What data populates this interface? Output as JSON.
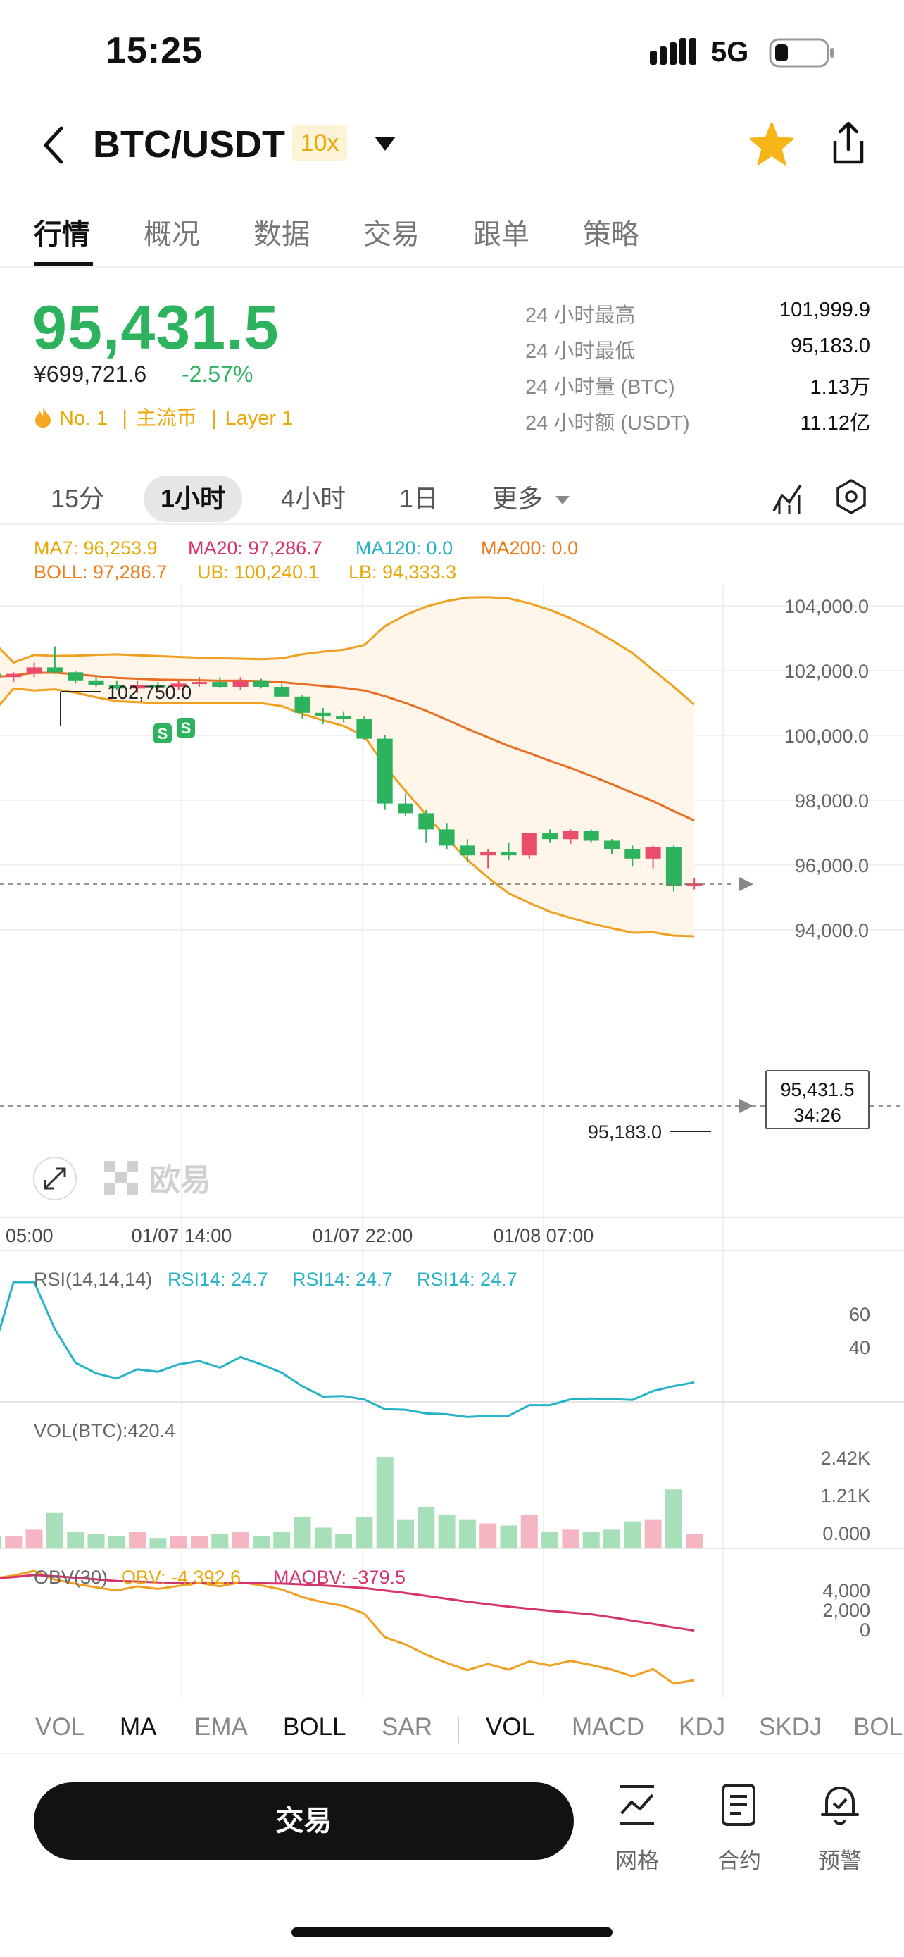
{
  "status_bar": {
    "time": "15:25",
    "network": "5G"
  },
  "nav": {
    "pair": "BTC/USDT",
    "leverage": "10x"
  },
  "tabs": [
    "行情",
    "概况",
    "数据",
    "交易",
    "跟单",
    "策略"
  ],
  "ticker": {
    "price": "95,431.5",
    "cny": "¥699,721.6",
    "change": "-2.57%",
    "rank": "No. 1",
    "tag1": "主流币",
    "tag2": "Layer 1",
    "stats": [
      {
        "label": "24 小时最高",
        "value": "101,999.9"
      },
      {
        "label": "24 小时最低",
        "value": "95,183.0"
      },
      {
        "label": "24 小时量 (BTC)",
        "value": "1.13万"
      },
      {
        "label": "24 小时额 (USDT)",
        "value": "11.12亿"
      }
    ]
  },
  "intervals": {
    "i15m": "15分",
    "i1h": "1小时",
    "i4h": "4小时",
    "i1d": "1日",
    "more": "更多"
  },
  "main_indicators": {
    "ma7": "MA7: 96,253.9",
    "ma20": "MA20: 97,286.7",
    "ma120": "MA120: 0.0",
    "ma200": "MA200: 0.0",
    "boll": "BOLL: 97,286.7",
    "ub": "UB: 100,240.1",
    "lb": "LB: 94,333.3"
  },
  "chart_data": {
    "type": "candlestick",
    "y_ticks": [
      "104,000.0",
      "102,000.0",
      "100,000.0",
      "98,000.0",
      "96,000.0",
      "94,000.0"
    ],
    "x_ticks": [
      "05:00",
      "01/07 14:00",
      "01/07 22:00",
      "01/08 07:00"
    ],
    "high_marker": "102,750.0",
    "low_marker": "95,183.0",
    "current_price": "95,431.5",
    "countdown": "34:26",
    "watermark": "欧易",
    "trade_marks": [
      "S",
      "S"
    ],
    "candles": [
      [
        101900,
        102000,
        101700,
        101800
      ],
      [
        101800,
        101950,
        101650,
        101900
      ],
      [
        101900,
        102250,
        101800,
        102100
      ],
      [
        102100,
        102750,
        101900,
        101950
      ],
      [
        101950,
        102000,
        101600,
        101700
      ],
      [
        101700,
        101850,
        101500,
        101550
      ],
      [
        101550,
        101700,
        101400,
        101450
      ],
      [
        101450,
        101700,
        101300,
        101550
      ],
      [
        101550,
        101650,
        101400,
        101500
      ],
      [
        101500,
        101700,
        101400,
        101600
      ],
      [
        101600,
        101800,
        101500,
        101650
      ],
      [
        101650,
        101800,
        101450,
        101500
      ],
      [
        101500,
        101800,
        101400,
        101700
      ],
      [
        101700,
        101750,
        101450,
        101500
      ],
      [
        101500,
        101600,
        101200,
        101200
      ],
      [
        101200,
        101250,
        100500,
        100700
      ],
      [
        100700,
        100850,
        100350,
        100600
      ],
      [
        100600,
        100750,
        100400,
        100500
      ],
      [
        100500,
        100600,
        99850,
        99900
      ],
      [
        99900,
        100000,
        97700,
        97900
      ],
      [
        97900,
        98200,
        97500,
        97600
      ],
      [
        97600,
        97700,
        96700,
        97100
      ],
      [
        97100,
        97300,
        96500,
        96600
      ],
      [
        96600,
        96800,
        96100,
        96300
      ],
      [
        96300,
        96500,
        95900,
        96400
      ],
      [
        96400,
        96700,
        96150,
        96300
      ],
      [
        96300,
        97000,
        96200,
        97000
      ],
      [
        97000,
        97100,
        96700,
        96800
      ],
      [
        96800,
        97100,
        96650,
        97050
      ],
      [
        97050,
        97100,
        96700,
        96750
      ],
      [
        96750,
        96800,
        96350,
        96500
      ],
      [
        96500,
        96600,
        95950,
        96200
      ],
      [
        96200,
        96600,
        95900,
        96550
      ],
      [
        96550,
        96600,
        95183,
        95350
      ],
      [
        95350,
        95600,
        95250,
        95431.5
      ]
    ],
    "rsi_label": "RSI(14,14,14)",
    "rsi_values": [
      "RSI14: 24.7",
      "RSI14: 24.7",
      "RSI14: 24.7"
    ],
    "rsi_ticks": [
      "60",
      "40"
    ],
    "vol_label": "VOL(BTC):420.4",
    "vol_ticks": [
      "2.42K",
      "1.21K",
      "0.000"
    ],
    "obv_label": "OBV(30)",
    "obv": "OBV: -4,392.6",
    "maobv": "MAOBV: -379.5",
    "obv_ticks": [
      "4,000",
      "2,000",
      "0"
    ]
  },
  "bottom_indicators": [
    "VOL",
    "MA",
    "EMA",
    "BOLL",
    "SAR",
    "VOL",
    "MACD",
    "KDJ",
    "SKDJ",
    "BOL"
  ],
  "footer": {
    "trade": "交易",
    "grid": "网格",
    "contract": "合约",
    "alert": "预警"
  },
  "colors": {
    "up": "#2db35d",
    "down": "#ea4d6a",
    "accent": "#e8a908"
  }
}
